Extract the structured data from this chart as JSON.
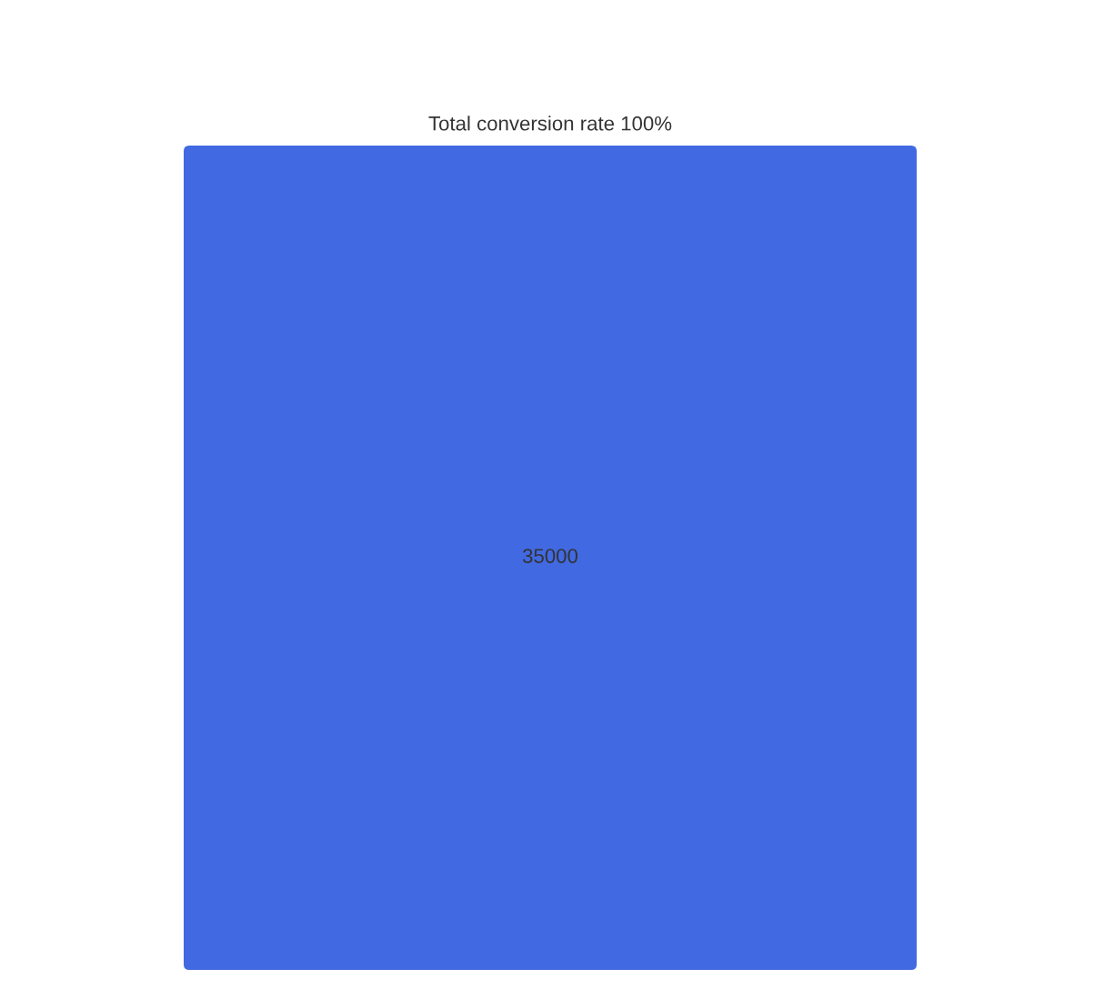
{
  "chart_data": {
    "type": "other",
    "title": "Total conversion rate 100%",
    "categories": [
      null
    ],
    "values": [
      35000
    ],
    "colors": [
      "#4169e1"
    ],
    "data_labels": true
  }
}
